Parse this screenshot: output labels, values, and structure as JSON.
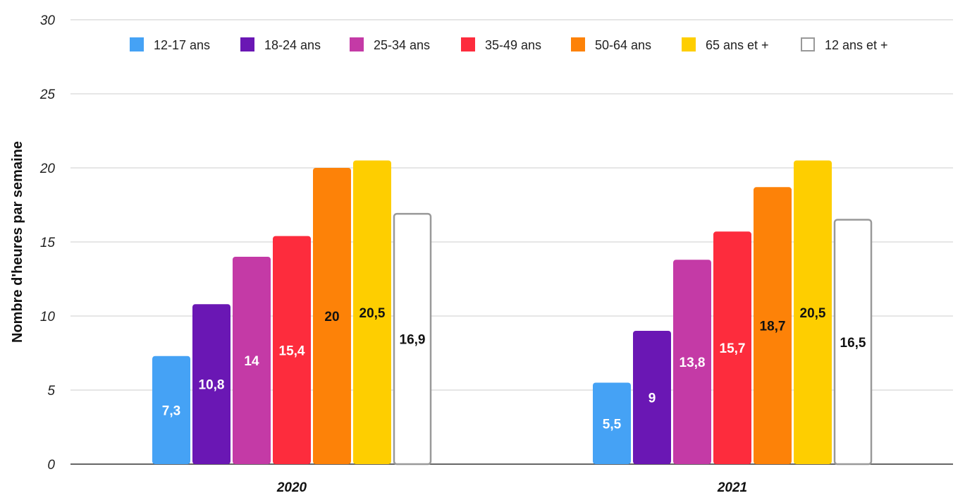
{
  "chart_data": {
    "type": "bar",
    "title": "",
    "xlabel": "",
    "ylabel": "Nombre d'heures par semaine",
    "ylim": [
      0,
      30
    ],
    "yticks": [
      0,
      5,
      10,
      15,
      20,
      25,
      30
    ],
    "grid": true,
    "legend_position": "top",
    "categories": [
      "2020",
      "2021"
    ],
    "series": [
      {
        "name": "12-17 ans",
        "values": [
          7.3,
          5.5
        ],
        "labels": [
          "7,3",
          "5,5"
        ],
        "color": "#45a2f5",
        "label_color": "#ffffff",
        "outline": false
      },
      {
        "name": "18-24 ans",
        "values": [
          10.8,
          9
        ],
        "labels": [
          "10,8",
          "9"
        ],
        "color": "#6a17b4",
        "label_color": "#ffffff",
        "outline": false
      },
      {
        "name": "25-34 ans",
        "values": [
          14,
          13.8
        ],
        "labels": [
          "14",
          "13,8"
        ],
        "color": "#c43aa6",
        "label_color": "#ffffff",
        "outline": false
      },
      {
        "name": "35-49 ans",
        "values": [
          15.4,
          15.7
        ],
        "labels": [
          "15,4",
          "15,7"
        ],
        "color": "#fd2c3d",
        "label_color": "#ffffff",
        "outline": false
      },
      {
        "name": "50-64 ans",
        "values": [
          20,
          18.7
        ],
        "labels": [
          "20",
          "18,7"
        ],
        "color": "#fd8208",
        "label_color": "#111111",
        "outline": false
      },
      {
        "name": "65 ans et +",
        "values": [
          20.5,
          20.5
        ],
        "labels": [
          "20,5",
          "20,5"
        ],
        "color": "#fece00",
        "label_color": "#111111",
        "outline": false
      },
      {
        "name": "12 ans et +",
        "values": [
          16.9,
          16.5
        ],
        "labels": [
          "16,9",
          "16,5"
        ],
        "color": "#ffffff",
        "label_color": "#111111",
        "outline": true,
        "outline_color": "#999999"
      }
    ]
  }
}
